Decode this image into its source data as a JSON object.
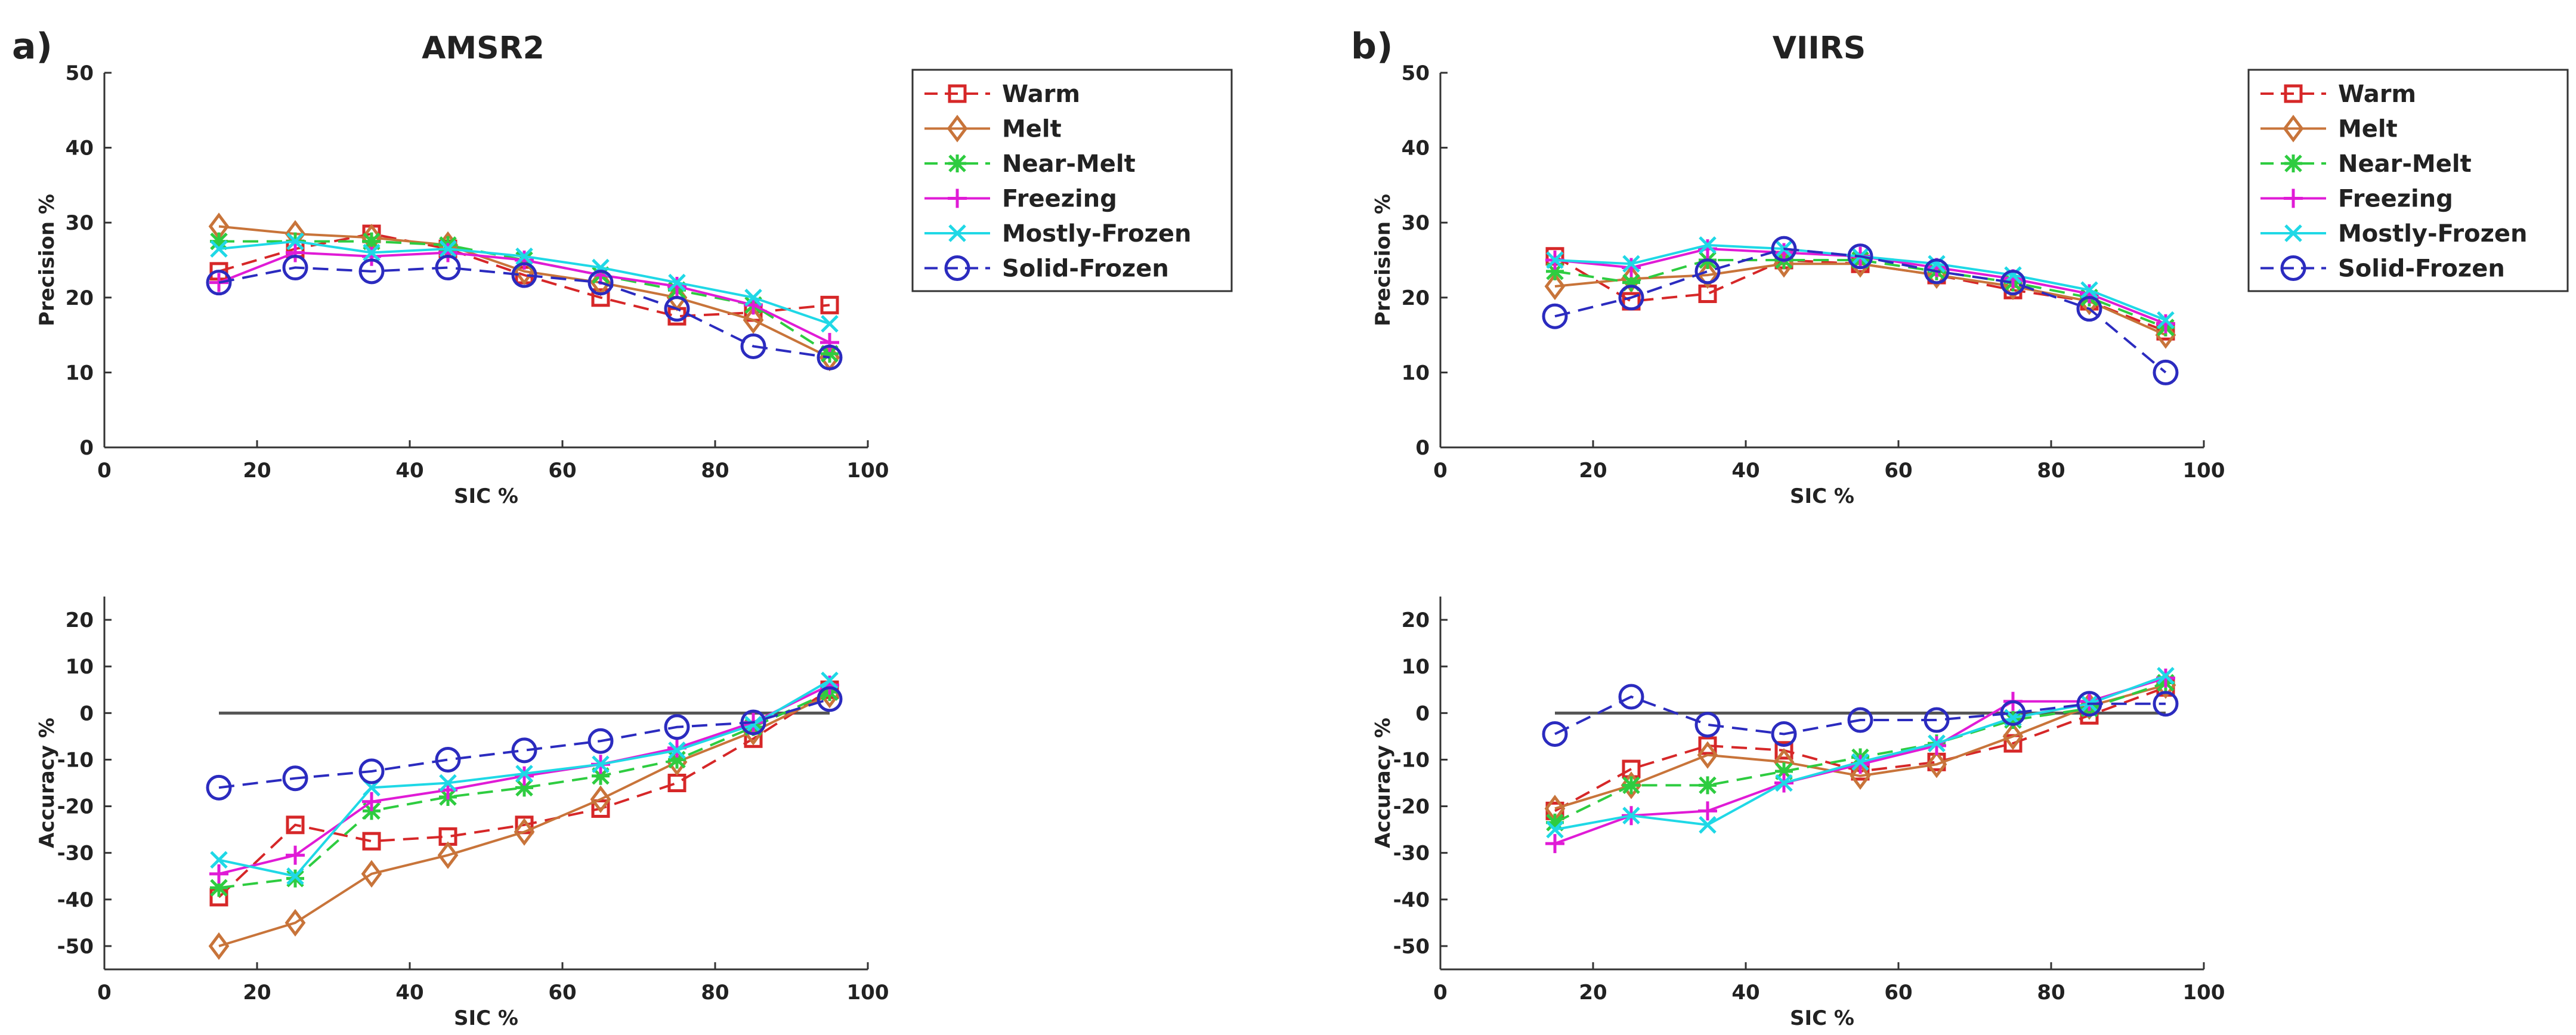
{
  "figure": {
    "panels": [
      {
        "label": "a)",
        "title": "AMSR2"
      },
      {
        "label": "b)",
        "title": "VIIRS"
      }
    ]
  },
  "chart_data": [
    {
      "type": "line",
      "id": "amsr2-precision",
      "title": "AMSR2",
      "xlabel": "SIC %",
      "ylabel": "Precision %",
      "xlim": [
        0,
        100
      ],
      "ylim": [
        0,
        50
      ],
      "xticks": [
        0,
        20,
        40,
        60,
        80,
        100
      ],
      "yticks": [
        0,
        10,
        20,
        30,
        40,
        50
      ],
      "x": [
        15,
        25,
        35,
        45,
        55,
        65,
        75,
        85,
        95
      ],
      "legend": "top-right",
      "series": [
        {
          "name": "Warm",
          "color": "#d62728",
          "marker": "square",
          "dash": "dashed",
          "values": [
            23.5,
            26.5,
            28.5,
            26.5,
            23,
            20,
            17.5,
            18,
            19
          ]
        },
        {
          "name": "Melt",
          "color": "#c8743a",
          "marker": "diamond",
          "dash": "solid",
          "values": [
            29.5,
            28.5,
            28,
            27,
            23.5,
            22,
            20,
            17,
            12
          ]
        },
        {
          "name": "Near-Melt",
          "color": "#2ecc40",
          "marker": "star",
          "dash": "dashed",
          "values": [
            27.5,
            27.5,
            27.5,
            27,
            25,
            23,
            21,
            19,
            12.5
          ]
        },
        {
          "name": "Freezing",
          "color": "#e01bd6",
          "marker": "plus",
          "dash": "solid",
          "values": [
            22,
            26,
            25.5,
            26,
            25,
            23,
            21.5,
            19,
            14
          ]
        },
        {
          "name": "Mostly-Frozen",
          "color": "#1fd8e6",
          "marker": "x",
          "dash": "solid",
          "values": [
            26.5,
            27.5,
            26,
            26.5,
            25.5,
            24,
            22,
            20,
            16.5
          ]
        },
        {
          "name": "Solid-Frozen",
          "color": "#2b2bbf",
          "marker": "circle",
          "dash": "dashed",
          "values": [
            22,
            24,
            23.5,
            24,
            23,
            22,
            18.5,
            13.5,
            12
          ]
        }
      ]
    },
    {
      "type": "line",
      "id": "viirs-precision",
      "title": "VIIRS",
      "xlabel": "SIC %",
      "ylabel": "Precision %",
      "xlim": [
        0,
        100
      ],
      "ylim": [
        0,
        50
      ],
      "xticks": [
        0,
        20,
        40,
        60,
        80,
        100
      ],
      "yticks": [
        0,
        10,
        20,
        30,
        40,
        50
      ],
      "x": [
        15,
        25,
        35,
        45,
        55,
        65,
        75,
        85,
        95
      ],
      "legend": "top-right",
      "series": [
        {
          "name": "Warm",
          "color": "#d62728",
          "marker": "square",
          "dash": "dashed",
          "values": [
            25.5,
            19.5,
            20.5,
            25,
            24.5,
            23,
            21,
            19.5,
            15.5
          ]
        },
        {
          "name": "Melt",
          "color": "#c8743a",
          "marker": "diamond",
          "dash": "solid",
          "values": [
            21.5,
            22.5,
            23,
            24.5,
            24.5,
            23,
            21.5,
            19.5,
            15
          ]
        },
        {
          "name": "Near-Melt",
          "color": "#2ecc40",
          "marker": "star",
          "dash": "dashed",
          "values": [
            23.5,
            22,
            25,
            25,
            25,
            23.5,
            22,
            20,
            16
          ]
        },
        {
          "name": "Freezing",
          "color": "#e01bd6",
          "marker": "plus",
          "dash": "solid",
          "values": [
            25,
            24,
            26.5,
            26,
            25.5,
            24,
            22.5,
            20.5,
            16.5
          ]
        },
        {
          "name": "Mostly-Frozen",
          "color": "#1fd8e6",
          "marker": "x",
          "dash": "solid",
          "values": [
            25,
            24.5,
            27,
            26.5,
            25.5,
            24.5,
            23,
            21,
            17
          ]
        },
        {
          "name": "Solid-Frozen",
          "color": "#2b2bbf",
          "marker": "circle",
          "dash": "dashed",
          "values": [
            17.5,
            20,
            23.5,
            26.5,
            25.5,
            23.5,
            22,
            18.5,
            10
          ]
        }
      ]
    },
    {
      "type": "line",
      "id": "amsr2-accuracy",
      "title": "",
      "xlabel": "SIC %",
      "ylabel": "Accuracy %",
      "xlim": [
        0,
        100
      ],
      "ylim": [
        -55,
        25
      ],
      "xticks": [
        0,
        20,
        40,
        60,
        80,
        100
      ],
      "yticks": [
        -50,
        -40,
        -30,
        -20,
        -10,
        0,
        10,
        20
      ],
      "x": [
        15,
        25,
        35,
        45,
        55,
        65,
        75,
        85,
        95
      ],
      "reference_line": {
        "y": 0,
        "x": [
          15,
          95
        ],
        "color": "#555555"
      },
      "series": [
        {
          "name": "Warm",
          "color": "#d62728",
          "marker": "square",
          "dash": "dashed",
          "values": [
            -39.5,
            -24,
            -27.5,
            -26.5,
            -24,
            -20.5,
            -15,
            -5.5,
            5
          ]
        },
        {
          "name": "Melt",
          "color": "#c8743a",
          "marker": "diamond",
          "dash": "solid",
          "values": [
            -50,
            -45,
            -34.5,
            -30.5,
            -25.5,
            -18.5,
            -10.5,
            -4,
            4
          ]
        },
        {
          "name": "Near-Melt",
          "color": "#2ecc40",
          "marker": "star",
          "dash": "dashed",
          "values": [
            -37.5,
            -35.5,
            -21,
            -18,
            -16,
            -13.5,
            -10,
            -3,
            4.5
          ]
        },
        {
          "name": "Freezing",
          "color": "#e01bd6",
          "marker": "plus",
          "dash": "solid",
          "values": [
            -34.5,
            -30.5,
            -19,
            -16.5,
            -13.5,
            -11,
            -7.5,
            -2,
            6
          ]
        },
        {
          "name": "Mostly-Frozen",
          "color": "#1fd8e6",
          "marker": "x",
          "dash": "solid",
          "values": [
            -31.5,
            -35,
            -16,
            -15,
            -13,
            -11,
            -8,
            -2.5,
            7
          ]
        },
        {
          "name": "Solid-Frozen",
          "color": "#2b2bbf",
          "marker": "circle",
          "dash": "dashed",
          "values": [
            -16,
            -14,
            -12.5,
            -10,
            -8,
            -6,
            -3,
            -2,
            3
          ]
        }
      ]
    },
    {
      "type": "line",
      "id": "viirs-accuracy",
      "title": "",
      "xlabel": "SIC %",
      "ylabel": "Accuracy %",
      "xlim": [
        0,
        100
      ],
      "ylim": [
        -55,
        25
      ],
      "xticks": [
        0,
        20,
        40,
        60,
        80,
        100
      ],
      "yticks": [
        -50,
        -40,
        -30,
        -20,
        -10,
        0,
        10,
        20
      ],
      "x": [
        15,
        25,
        35,
        45,
        55,
        65,
        75,
        85,
        95
      ],
      "reference_line": {
        "y": 0,
        "x": [
          15,
          95
        ],
        "color": "#555555"
      },
      "series": [
        {
          "name": "Warm",
          "color": "#d62728",
          "marker": "square",
          "dash": "dashed",
          "values": [
            -21,
            -12,
            -7,
            -8,
            -12.5,
            -10.5,
            -6.5,
            -0.5,
            5.5
          ]
        },
        {
          "name": "Melt",
          "color": "#c8743a",
          "marker": "diamond",
          "dash": "solid",
          "values": [
            -20.5,
            -15.5,
            -9,
            -10.5,
            -13.5,
            -11,
            -5,
            1.5,
            6
          ]
        },
        {
          "name": "Near-Melt",
          "color": "#2ecc40",
          "marker": "star",
          "dash": "dashed",
          "values": [
            -23.5,
            -15.5,
            -15.5,
            -12.5,
            -9.5,
            -6.5,
            -1.5,
            1,
            6.5
          ]
        },
        {
          "name": "Freezing",
          "color": "#e01bd6",
          "marker": "plus",
          "dash": "solid",
          "values": [
            -28,
            -22,
            -21,
            -15,
            -11,
            -7,
            2.5,
            2.5,
            7.5
          ]
        },
        {
          "name": "Mostly-Frozen",
          "color": "#1fd8e6",
          "marker": "x",
          "dash": "solid",
          "values": [
            -25,
            -22,
            -24,
            -15,
            -10.5,
            -6.5,
            -1,
            2,
            8
          ]
        },
        {
          "name": "Solid-Frozen",
          "color": "#2b2bbf",
          "marker": "circle",
          "dash": "dashed",
          "values": [
            -4.5,
            3.5,
            -2.5,
            -4.5,
            -1.5,
            -1.5,
            0,
            2,
            2
          ]
        }
      ]
    }
  ]
}
